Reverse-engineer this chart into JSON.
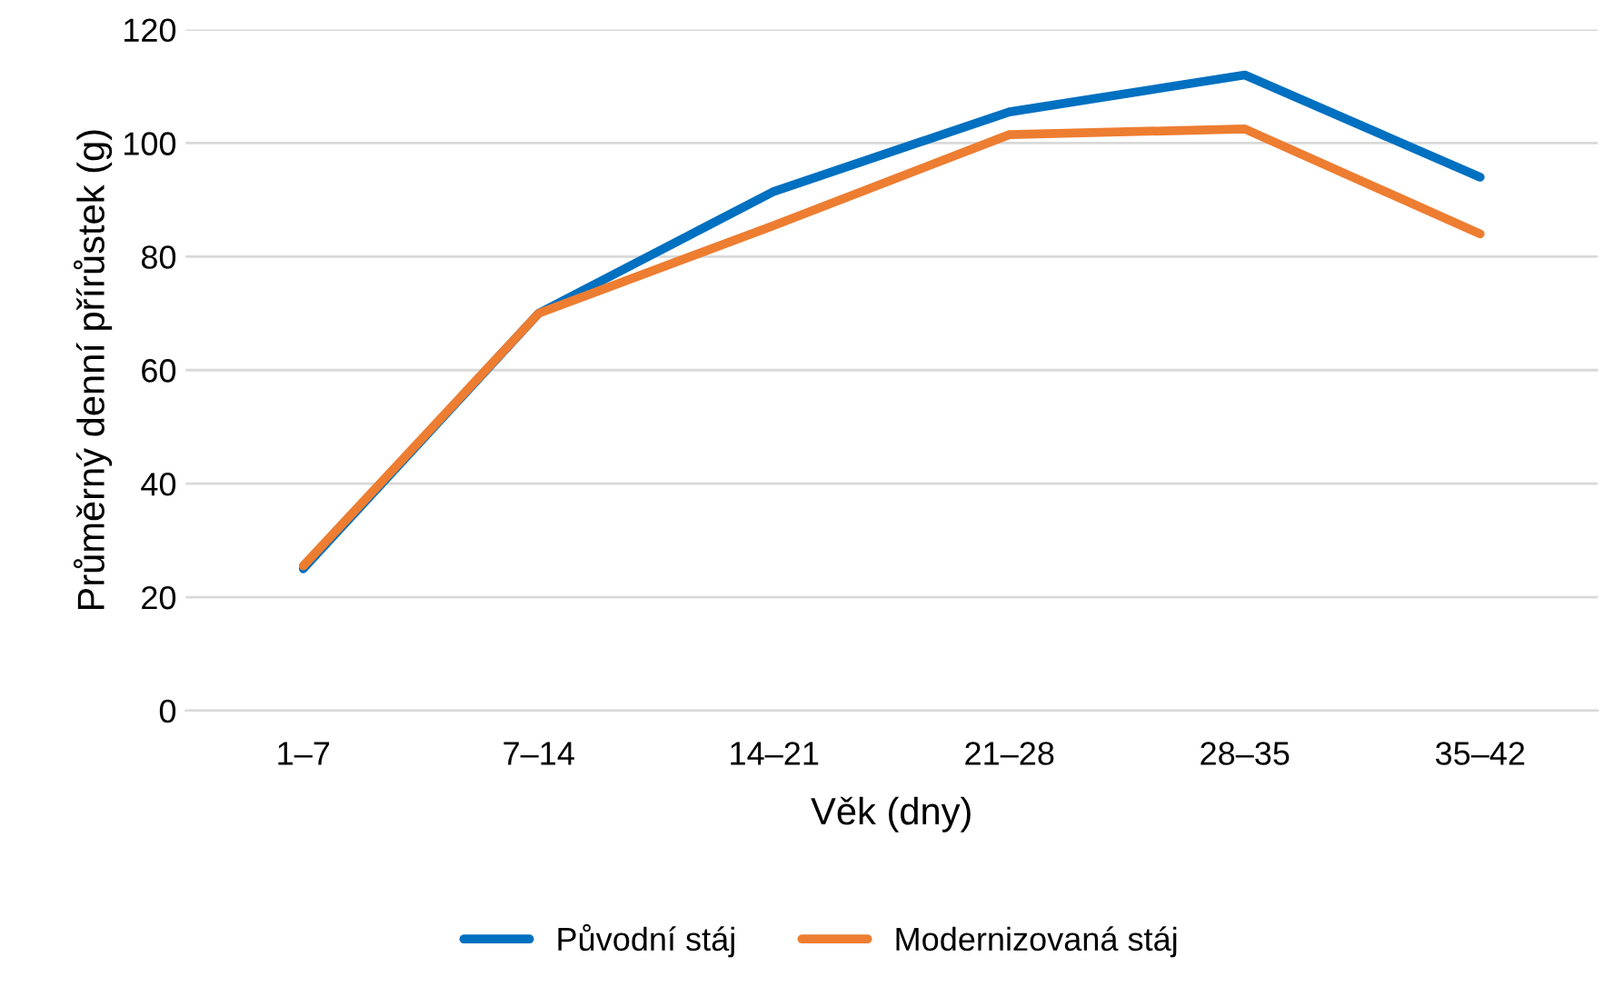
{
  "chart_data": {
    "type": "line",
    "xlabel": "Věk (dny)",
    "ylabel": "Průměrný denní přírůstek (g)",
    "categories": [
      "1–7",
      "7–14",
      "14–21",
      "21–28",
      "28–35",
      "35–42"
    ],
    "series": [
      {
        "name": "Původní stáj",
        "color": "#0070c0",
        "values": [
          25,
          70,
          91.5,
          105.5,
          112,
          94
        ]
      },
      {
        "name": "Modernizovaná stáj",
        "color": "#ed7d31",
        "values": [
          25.5,
          70,
          85.5,
          101.5,
          102.5,
          84
        ]
      }
    ],
    "ylim": [
      0,
      120
    ],
    "yticks": [
      0,
      20,
      40,
      60,
      80,
      100,
      120
    ],
    "grid": "y",
    "legend": "bottom",
    "marker": "none",
    "line_style": "solid"
  }
}
